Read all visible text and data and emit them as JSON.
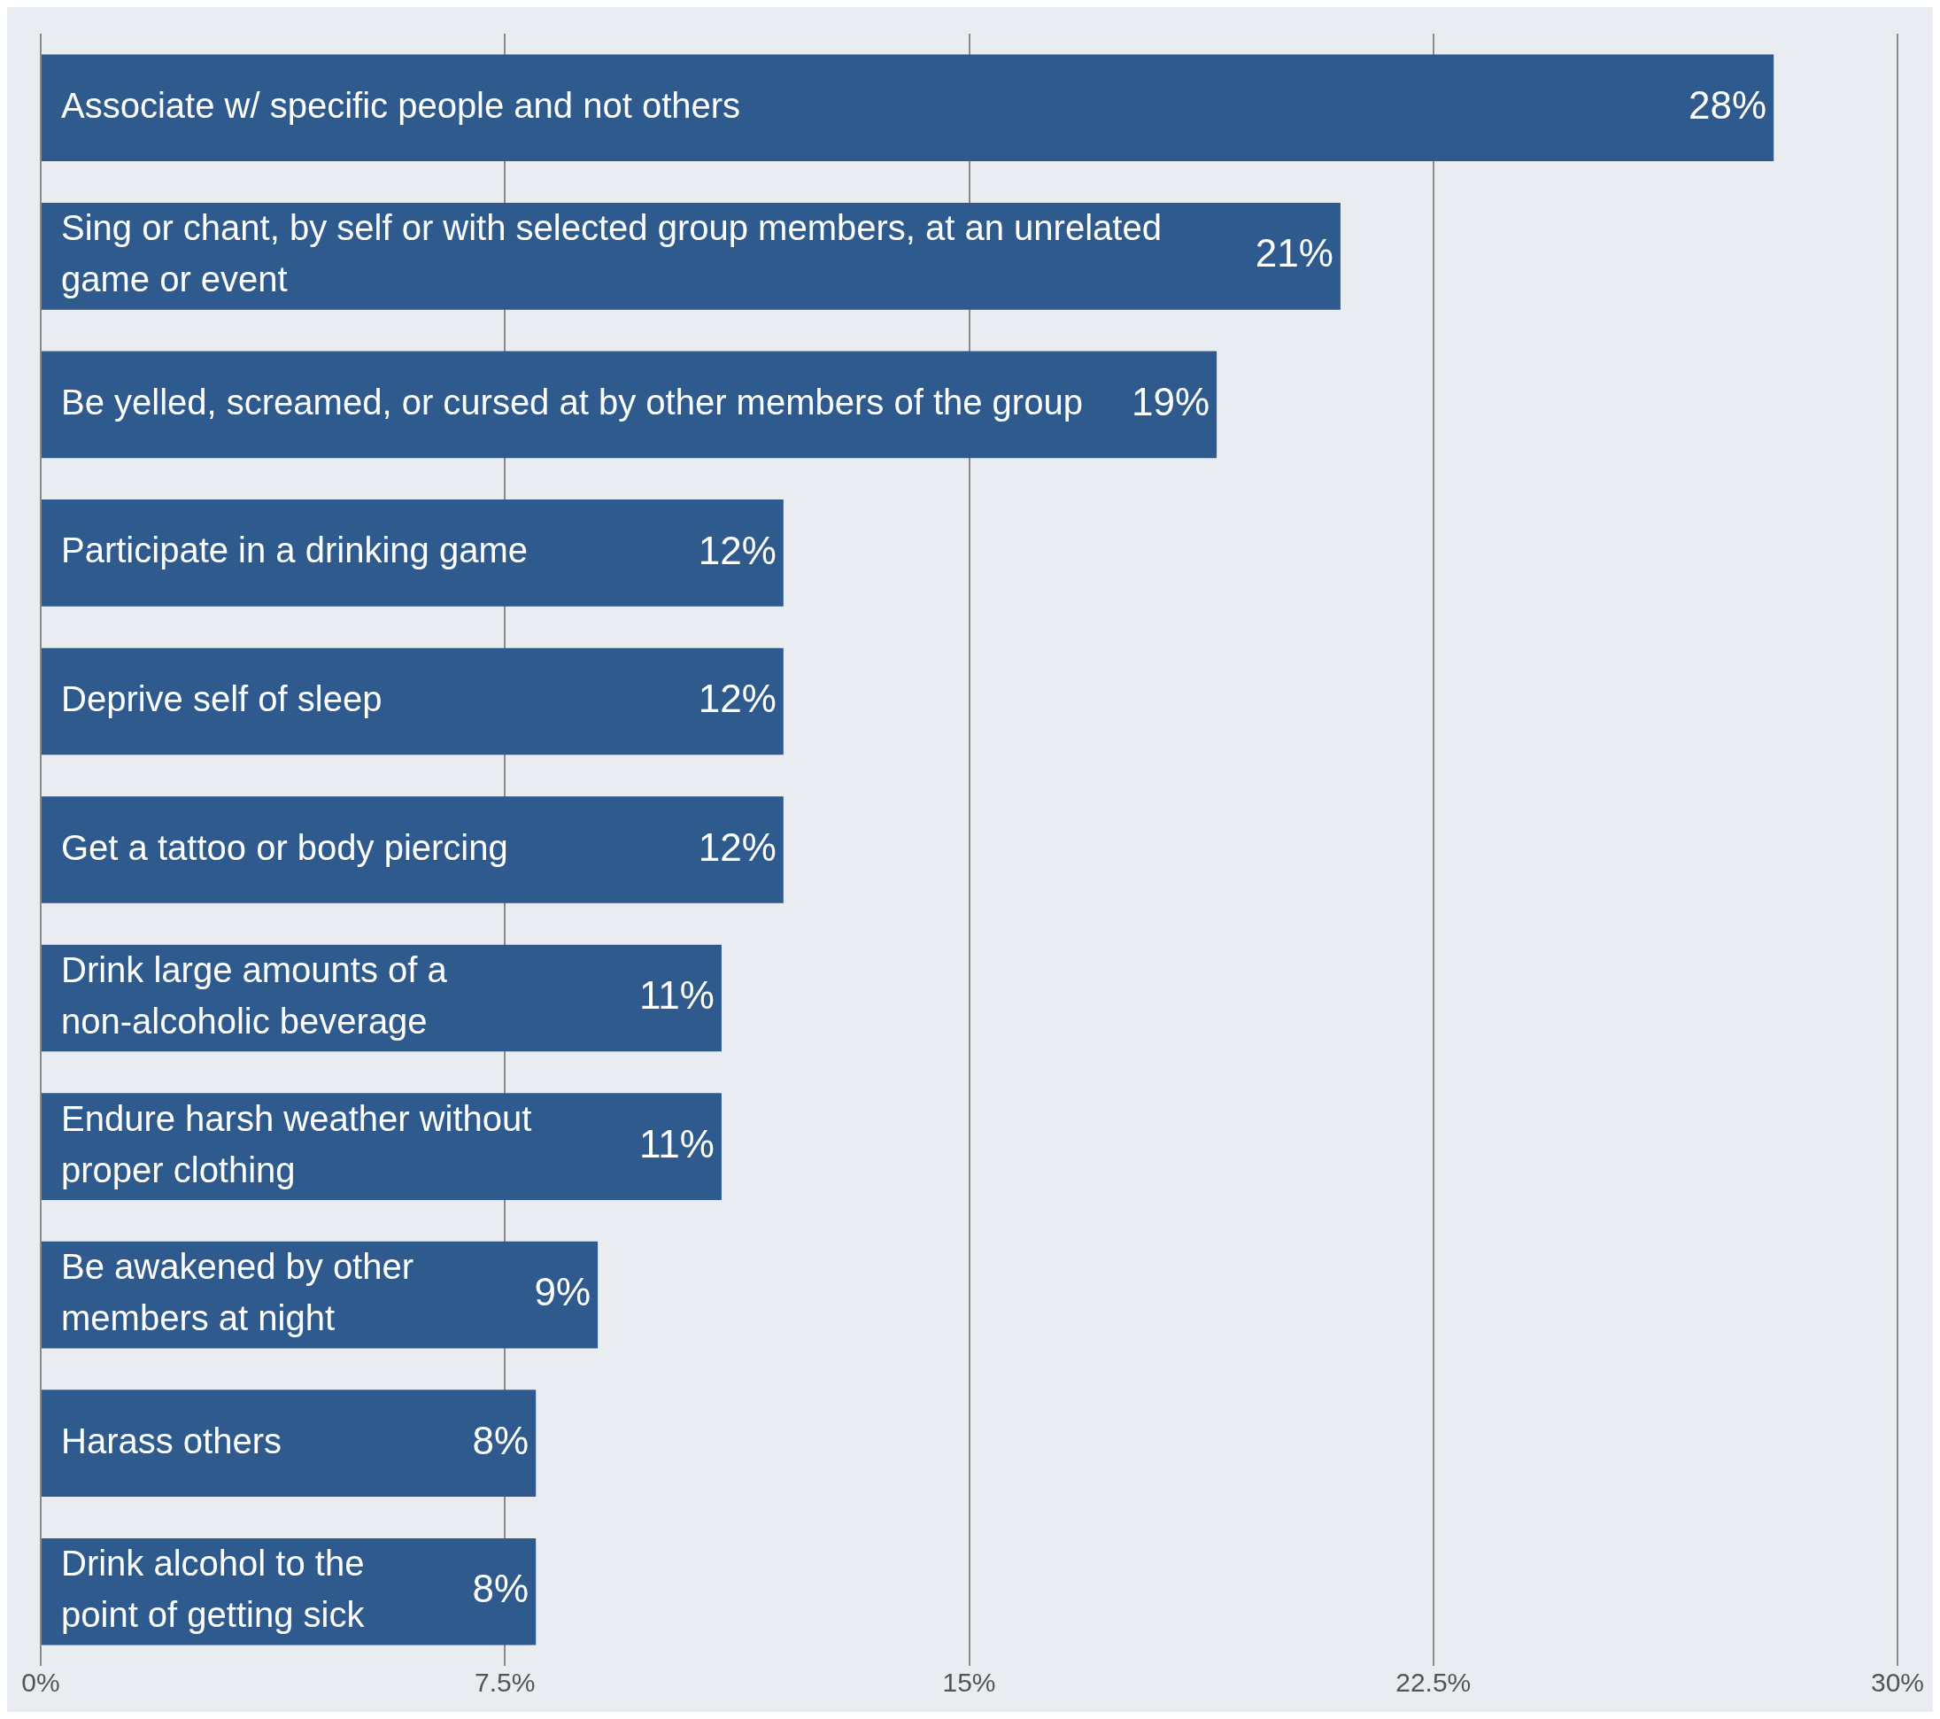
{
  "chart_data": {
    "type": "bar",
    "orientation": "horizontal",
    "categories": [
      "Associate w/ specific people and not others",
      "Sing or chant, by self or with selected group members, at an unrelated game or event",
      "Be yelled, screamed, or cursed at by other members of the group",
      "Participate in a drinking game",
      "Deprive self of sleep",
      "Get a tattoo or body piercing",
      "Drink large amounts of a non-alcoholic beverage",
      "Endure harsh weather without proper clothing",
      "Be awakened by other members at night",
      "Harass others",
      "Drink alcohol to the point of getting sick"
    ],
    "values": [
      28,
      21,
      19,
      12,
      12,
      12,
      11,
      11,
      9,
      8,
      8
    ],
    "value_labels": [
      "28%",
      "21%",
      "19%",
      "12%",
      "12%",
      "12%",
      "11%",
      "11%",
      "9%",
      "8%",
      "8%"
    ],
    "color": "#2e5a8e",
    "xlim": [
      0,
      30
    ],
    "xticks": [
      {
        "value": 0,
        "label": "0%"
      },
      {
        "value": 7.5,
        "label": "7.5%"
      },
      {
        "value": 15,
        "label": "15%"
      },
      {
        "value": 22.5,
        "label": "22.5%"
      },
      {
        "value": 30,
        "label": "30%"
      }
    ],
    "grid": "x"
  }
}
